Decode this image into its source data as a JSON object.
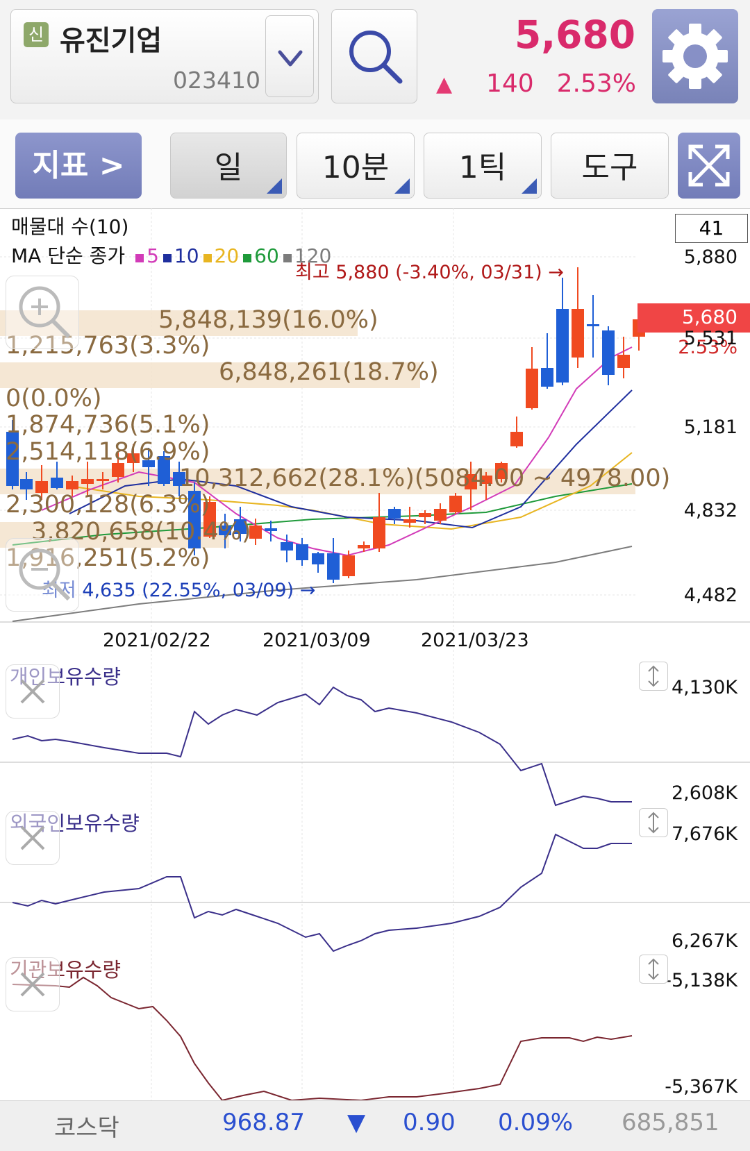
{
  "header": {
    "credit_badge": "신",
    "stock_name": "유진기업",
    "stock_code": "023410",
    "price": "5,680",
    "change_arrow": "▲",
    "change": "140",
    "change_pct": "2.53%",
    "up_color": "#d92a6b",
    "icons": {
      "dropdown": "chevron-down-icon",
      "search": "search-icon",
      "settings": "gear-icon"
    }
  },
  "toolbar": {
    "indicator_label": "지표 >",
    "day_label": "일",
    "minute_label": "10분",
    "tick_label": "1틱",
    "tools_label": "도구",
    "fullscreen_icon": "expand-icon"
  },
  "main_chart": {
    "volume_profile_title": "매물대 수(10)",
    "ma_title": "MA 단순 종가",
    "ma_items": [
      {
        "period": "5",
        "color": "#d23bb8"
      },
      {
        "period": "10",
        "color": "#1f2f9e"
      },
      {
        "period": "20",
        "color": "#e8b521"
      },
      {
        "period": "60",
        "color": "#1e9a3a"
      },
      {
        "period": "120",
        "color": "#7c7c7c"
      }
    ],
    "box_value": "41",
    "y_ticks": [
      "5,880",
      "5,531",
      "5,181",
      "4,832",
      "4,482"
    ],
    "current_price_tag": "5,680",
    "current_pct_tag": "2.53%",
    "high_note": "최고 5,880 (-3.40%, 03/31) →",
    "low_note": "최저 4,635 (22.55%, 03/09) →",
    "x_ticks": [
      "2021/02/22",
      "2021/03/09",
      "2021/03/23"
    ],
    "volume_profile": [
      "5,848,139(16.0%)",
      "1,215,763(3.3%)",
      "6,848,261(18.7%)",
      "0(0.0%)",
      "1,874,736(5.1%)",
      "2,514,118(6.9%)",
      "10,312,662(28.1%)(5084.00 ~ 4978.00)",
      "2,300,128(6.3%)",
      "3,820,658(10.4%)",
      "1,916,251(5.2%)"
    ]
  },
  "panels": [
    {
      "title": "개인보유수량",
      "color": "#3a2f8a",
      "max": "4,130K",
      "min": "2,608K"
    },
    {
      "title": "외국인보유수량",
      "color": "#3a2f8a",
      "max": "7,676K",
      "min": "6,267K"
    },
    {
      "title": "기관보유수량",
      "color": "#7a2630",
      "max": "-5,138K",
      "min": "-5,367K"
    }
  ],
  "status": {
    "index_name": "코스닥",
    "index_value": "968.87",
    "arrow": "▼",
    "change": "0.90",
    "pct": "0.09%",
    "volume": "685,851",
    "down_color": "#2a4fd0"
  }
}
